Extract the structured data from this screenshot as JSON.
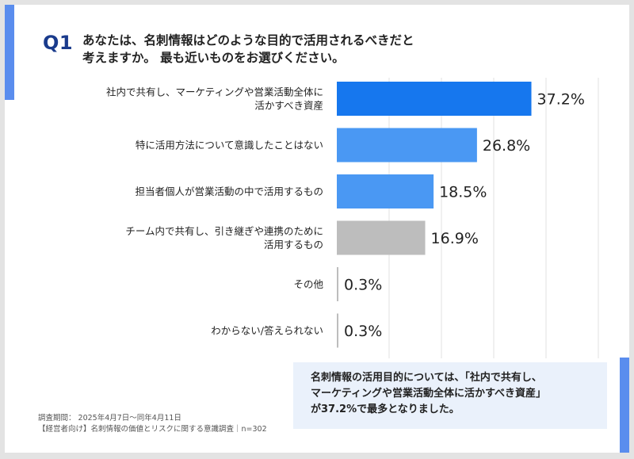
{
  "question": {
    "label": "Q1",
    "line1": "あなたは、名刺情報はどのような目的で活用されるべきだと",
    "line2": "考えますか。 最も近いものをお選びください。"
  },
  "chart_data": {
    "type": "bar",
    "orientation": "horizontal",
    "title": "",
    "xlabel": "",
    "ylabel": "",
    "xlim": [
      0,
      50
    ],
    "grid": true,
    "unit": "%",
    "categories": [
      [
        "社内で共有し、マーケティングや営業活動全体に",
        "活かすべき資産"
      ],
      [
        "特に活用方法について意識したことはない"
      ],
      [
        "担当者個人が営業活動の中で活用するもの"
      ],
      [
        "チーム内で共有し、引き継ぎや連携のために",
        "活用するもの"
      ],
      [
        "その他"
      ],
      [
        "わからない/答えられない"
      ]
    ],
    "values": [
      37.2,
      26.8,
      18.5,
      16.9,
      0.3,
      0.3
    ],
    "value_labels": [
      "37.2%",
      "26.8%",
      "18.5%",
      "16.9%",
      "0.3%",
      "0.3%"
    ],
    "colors": [
      "#1677ee",
      "#4a98f3",
      "#4a98f3",
      "#bdbdbd",
      "#bdbdbd",
      "#bdbdbd"
    ]
  },
  "note": {
    "line1": "名刺情報の活用目的については、「社内で共有し、",
    "line2": "マーケティングや営業活動全体に活かすべき資産」",
    "line3": "が37.2%で最多となりました。"
  },
  "footer": {
    "period": "調査期間： 2025年4月7日～同年4月11日",
    "survey": "【経営者向け】名刺情報の価値とリスクに関する意識調査｜n=302"
  }
}
